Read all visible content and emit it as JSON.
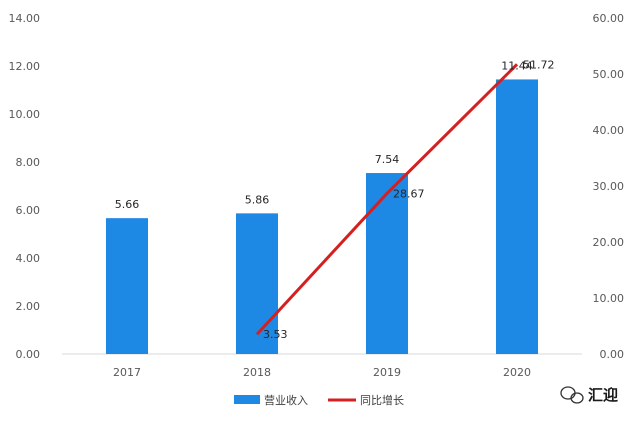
{
  "chart_data": {
    "type": "bar",
    "categories": [
      "2017",
      "2018",
      "2019",
      "2020"
    ],
    "series": [
      {
        "name": "营业收入",
        "kind": "bar",
        "axis": "left",
        "color": "#1E88E5",
        "values": [
          5.66,
          5.86,
          7.54,
          11.44
        ],
        "labels": [
          "5.66",
          "5.86",
          "7.54",
          "11.44"
        ]
      },
      {
        "name": "同比增长",
        "kind": "line",
        "axis": "right",
        "color": "#D42020",
        "values": [
          null,
          3.53,
          28.67,
          51.72
        ],
        "labels": [
          "",
          "3.53",
          "28.67",
          "51.72"
        ]
      }
    ],
    "y_left": {
      "range": [
        0,
        14
      ],
      "ticks": [
        "0.00",
        "2.00",
        "4.00",
        "6.00",
        "8.00",
        "10.00",
        "12.00",
        "14.00"
      ]
    },
    "y_right": {
      "range": [
        0,
        60
      ],
      "ticks": [
        "0.00",
        "10.00",
        "20.00",
        "30.00",
        "40.00",
        "50.00",
        "60.00"
      ]
    },
    "title": "",
    "xlabel": "",
    "ylabel": "",
    "grid": false,
    "legend": "bottom-center"
  },
  "watermark": {
    "text": "汇迎",
    "icon": "wechat-icon"
  }
}
